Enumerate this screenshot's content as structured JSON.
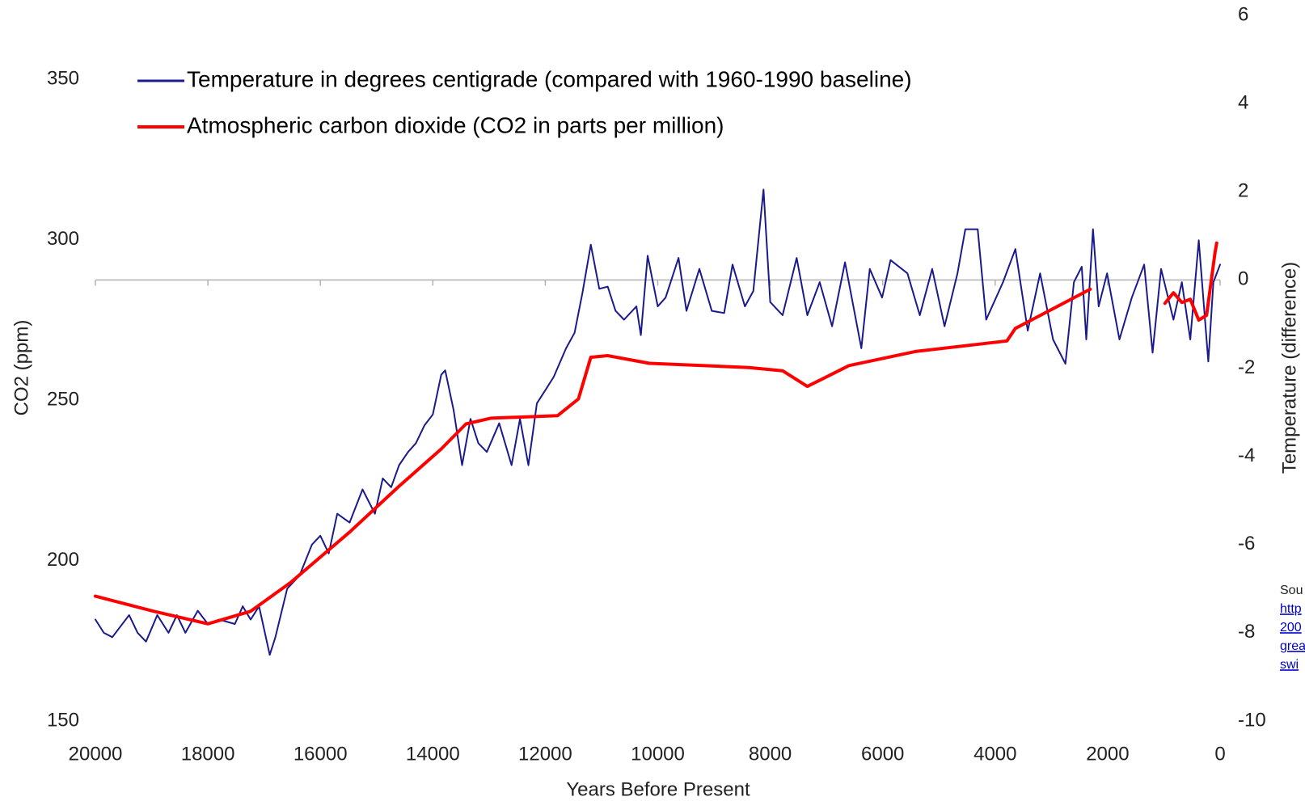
{
  "chart_data": {
    "type": "line",
    "xlabel": "Years Before Present",
    "ylabel": "CO2 (ppm)",
    "y2label": "Temperature (difference)",
    "xlim": [
      20000,
      0
    ],
    "xticks": [
      20000,
      18000,
      16000,
      14000,
      12000,
      10000,
      8000,
      6000,
      4000,
      2000,
      0
    ],
    "ylim": [
      150,
      370
    ],
    "yticks": [
      150,
      200,
      250,
      300,
      350
    ],
    "y2lim": [
      -10,
      6
    ],
    "y2ticks": [
      -10,
      -8,
      -6,
      -4,
      -2,
      0,
      2,
      4,
      6
    ],
    "legend": "top-left",
    "annotations": [
      "Sou",
      "http",
      "200",
      "grea",
      "swi"
    ],
    "series": [
      {
        "name": "Temperature in degrees centigrade (compared with 1960-1990 baseline)",
        "color": "#1a1a8c",
        "axis": "y2",
        "x": [
          20000,
          19850,
          19700,
          19400,
          19250,
          19100,
          18900,
          18700,
          18550,
          18400,
          18180,
          18000,
          17800,
          17520,
          17380,
          17240,
          17090,
          16900,
          16800,
          16590,
          16370,
          16150,
          16000,
          15850,
          15700,
          15480,
          15250,
          15030,
          14890,
          14740,
          14600,
          14440,
          14300,
          14150,
          14000,
          13850,
          13780,
          13630,
          13480,
          13330,
          13190,
          13040,
          12820,
          12600,
          12450,
          12300,
          12150,
          12000,
          11850,
          11630,
          11480,
          11340,
          11190,
          11040,
          10890,
          10750,
          10600,
          10380,
          10300,
          10180,
          10000,
          9860,
          9630,
          9490,
          9260,
          9040,
          8820,
          8670,
          8450,
          8300,
          8120,
          8000,
          7780,
          7530,
          7340,
          7120,
          6900,
          6670,
          6380,
          6230,
          6010,
          5860,
          5560,
          5340,
          5120,
          4900,
          4670,
          4530,
          4310,
          4160,
          3860,
          3640,
          3420,
          3200,
          2970,
          2750,
          2600,
          2460,
          2380,
          2260,
          2160,
          2010,
          1790,
          1570,
          1350,
          1200,
          1050,
          830,
          680,
          530,
          380,
          210,
          120,
          0
        ],
        "values": [
          -7.7,
          -8.0,
          -8.1,
          -7.6,
          -8.0,
          -8.2,
          -7.6,
          -8.0,
          -7.6,
          -8.0,
          -7.5,
          -7.8,
          -7.7,
          -7.8,
          -7.4,
          -7.7,
          -7.4,
          -8.5,
          -8.1,
          -7.0,
          -6.7,
          -6.0,
          -5.8,
          -6.2,
          -5.3,
          -5.5,
          -4.75,
          -5.3,
          -4.5,
          -4.7,
          -4.2,
          -3.9,
          -3.7,
          -3.3,
          -3.05,
          -2.15,
          -2.05,
          -2.95,
          -4.2,
          -3.15,
          -3.7,
          -3.9,
          -3.25,
          -4.2,
          -3.15,
          -4.2,
          -2.8,
          -2.5,
          -2.2,
          -1.55,
          -1.2,
          -0.3,
          0.8,
          -0.2,
          -0.15,
          -0.7,
          -0.9,
          -0.6,
          -1.25,
          0.55,
          -0.6,
          -0.4,
          0.5,
          -0.7,
          0.25,
          -0.7,
          -0.75,
          0.35,
          -0.6,
          -0.25,
          2.05,
          -0.5,
          -0.8,
          0.5,
          -0.8,
          -0.05,
          -1.05,
          0.4,
          -1.55,
          0.25,
          -0.4,
          0.45,
          0.15,
          -0.8,
          0.25,
          -1.05,
          0.15,
          1.15,
          1.15,
          -0.9,
          -0.05,
          0.7,
          -1.15,
          0.15,
          -1.35,
          -1.9,
          -0.05,
          0.3,
          -1.35,
          1.15,
          -0.6,
          0.15,
          -1.35,
          -0.4,
          0.35,
          -1.65,
          0.25,
          -0.9,
          -0.05,
          -1.35,
          0.9,
          -1.85,
          -0.05,
          0.35
        ]
      },
      {
        "name": "Atmospheric carbon dioxide (CO2 in parts per million)",
        "color": "#ff0000",
        "axis": "y",
        "x": [
          20000,
          18960,
          18000,
          17240,
          16520,
          15480,
          14600,
          13850,
          13410,
          12970,
          11780,
          11410,
          11190,
          10890,
          10150,
          8380,
          7780,
          7340,
          6600,
          5420,
          3790,
          3640,
          2310,
          null,
          980,
          830,
          680,
          530,
          380,
          240,
          90,
          60
        ],
        "values": [
          188.9,
          184.2,
          180.3,
          184.2,
          193.3,
          208.9,
          223.2,
          234.8,
          242.6,
          244.4,
          245.2,
          250.4,
          263.4,
          263.9,
          261.5,
          260.2,
          259.2,
          254.3,
          260.8,
          265.2,
          268.5,
          272.4,
          284.6,
          null,
          280.2,
          283.5,
          280.5,
          281.5,
          275.0,
          276.5,
          296.0,
          299.0
        ]
      }
    ]
  }
}
